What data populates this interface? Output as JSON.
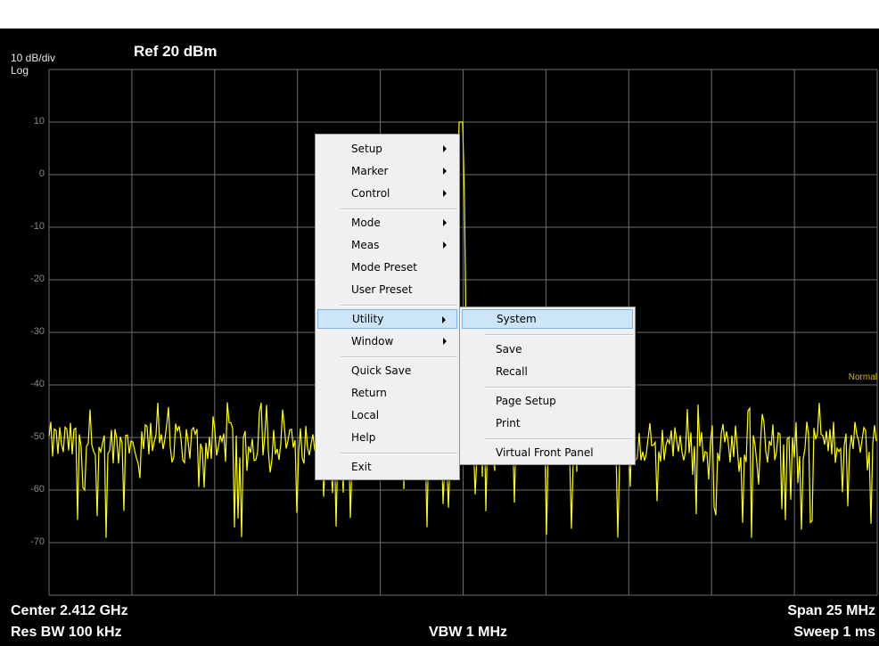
{
  "header": {
    "scale": "10 dB/div",
    "scale_mode": "Log",
    "ref_level": "Ref  20 dBm"
  },
  "y_axis_labels": [
    "10",
    "0",
    "-10",
    "-20",
    "-30",
    "-40",
    "-50",
    "-60",
    "-70"
  ],
  "trace_status": "Normal",
  "footer": {
    "center": "Center  2.412 GHz",
    "res_bw": "Res BW  100 kHz",
    "vbw": "VBW  1 MHz",
    "span": "Span 25 MHz",
    "sweep": "Sweep  1 ms"
  },
  "colors": {
    "trace": "#ffff00",
    "grid": "#6e6e6e",
    "menu_highlight": "#cde6f7"
  },
  "menu": {
    "items": [
      {
        "label": "Setup",
        "submenu": true
      },
      {
        "label": "Marker",
        "submenu": true
      },
      {
        "label": "Control",
        "submenu": true
      },
      {
        "label": "Mode",
        "submenu": true
      },
      {
        "label": "Meas",
        "submenu": true
      },
      {
        "label": "Mode Preset",
        "submenu": false
      },
      {
        "label": "User Preset",
        "submenu": false
      },
      {
        "label": "Utility",
        "submenu": true,
        "highlighted": true
      },
      {
        "label": "Window",
        "submenu": true
      },
      {
        "label": "Quick Save",
        "submenu": false
      },
      {
        "label": "Return",
        "submenu": false
      },
      {
        "label": "Local",
        "submenu": false
      },
      {
        "label": "Help",
        "submenu": false
      },
      {
        "label": "Exit",
        "submenu": false
      }
    ]
  },
  "submenu": {
    "items": [
      {
        "label": "System",
        "highlighted": true
      },
      {
        "label": "Save"
      },
      {
        "label": "Recall"
      },
      {
        "label": "Page Setup"
      },
      {
        "label": "Print"
      },
      {
        "label": "Virtual Front Panel"
      }
    ]
  }
}
